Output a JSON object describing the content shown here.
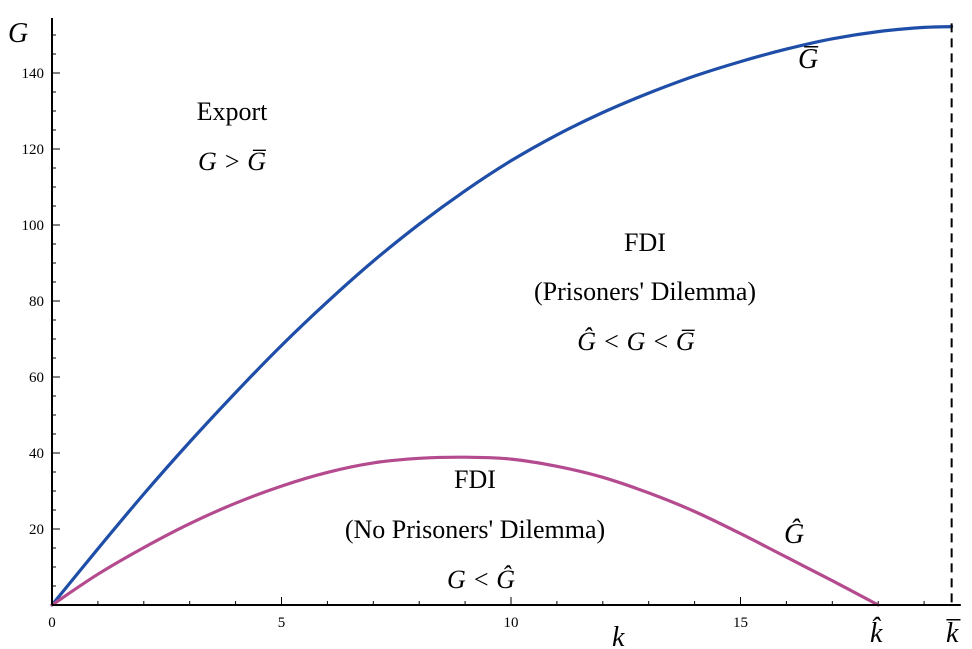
{
  "chart_data": {
    "type": "line",
    "xlabel": "k",
    "ylabel": "G",
    "xlim": [
      0,
      19.8
    ],
    "ylim": [
      0,
      152
    ],
    "x_ticks": [
      0,
      5,
      10,
      15
    ],
    "y_ticks": [
      20,
      40,
      60,
      80,
      100,
      120,
      140
    ],
    "x_tick_labels": [
      "0",
      "5",
      "10",
      "15"
    ],
    "y_tick_labels": [
      "20",
      "40",
      "60",
      "80",
      "100",
      "120",
      "140"
    ],
    "k_hat": 18.0,
    "k_bar": 19.6,
    "k_hat_label": "k̂",
    "k_bar_label": "k̅",
    "series": [
      {
        "name": "G̅",
        "color": "#1f4ea8",
        "x": [
          0,
          1,
          2,
          3,
          4,
          5,
          6,
          7,
          8,
          9,
          10,
          11,
          12,
          13,
          14,
          15,
          16,
          17,
          18,
          19,
          19.6
        ],
        "y": [
          0,
          14.8,
          29.2,
          42.9,
          55.9,
          68.3,
          79.8,
          90.5,
          100.2,
          109.0,
          116.9,
          123.7,
          129.6,
          134.7,
          139.2,
          143.0,
          146.3,
          149.0,
          150.9,
          152.0,
          152.2
        ]
      },
      {
        "name": "Ĝ",
        "color": "#b54b8f",
        "x": [
          0,
          1,
          2,
          3,
          4,
          5,
          6,
          7,
          8,
          9,
          10,
          11,
          12,
          13,
          14,
          15,
          16,
          17,
          18
        ],
        "y": [
          0,
          8.1,
          15.1,
          21.4,
          26.8,
          31.3,
          34.9,
          37.4,
          38.6,
          38.9,
          38.4,
          36.5,
          33.6,
          29.5,
          24.6,
          18.8,
          12.6,
          6.4,
          0
        ]
      }
    ],
    "annotations": [
      {
        "key": "export",
        "lines": [
          "Export",
          "G > G̅"
        ]
      },
      {
        "key": "fdi_pd",
        "lines": [
          "FDI",
          "(Prisoners' Dilemma)",
          "Ĝ < G < G̅"
        ]
      },
      {
        "key": "fdi_nopd",
        "lines": [
          "FDI",
          "(No Prisoners' Dilemma)",
          "G < Ĝ"
        ]
      }
    ]
  }
}
